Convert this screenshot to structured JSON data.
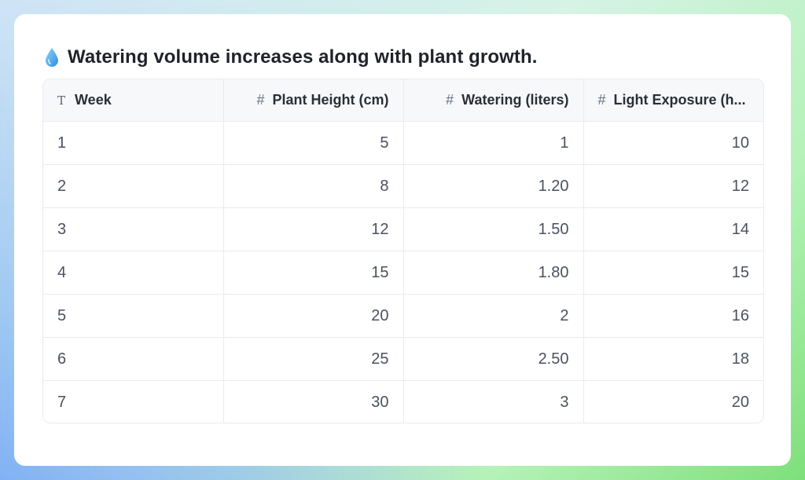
{
  "title": {
    "icon": "droplet-icon",
    "text": "Watering volume increases along with plant growth."
  },
  "table": {
    "columns": [
      {
        "label": "Week",
        "icon": "text-type-icon"
      },
      {
        "label": "Plant Height (cm)",
        "icon": "number-hash-icon"
      },
      {
        "label": "Watering (liters)",
        "icon": "number-hash-icon"
      },
      {
        "label": "Light Exposure (h...",
        "icon": "number-hash-icon"
      }
    ],
    "rows": [
      [
        "1",
        "5",
        "1",
        "10"
      ],
      [
        "2",
        "8",
        "1.20",
        "12"
      ],
      [
        "3",
        "12",
        "1.50",
        "14"
      ],
      [
        "4",
        "15",
        "1.80",
        "15"
      ],
      [
        "5",
        "20",
        "2",
        "16"
      ],
      [
        "6",
        "25",
        "2.50",
        "18"
      ],
      [
        "7",
        "30",
        "3",
        "20"
      ]
    ]
  },
  "colors": {
    "accent_drop": "#4fb3f0",
    "header_bg": "#f7f8fa",
    "border": "#e9ebef"
  }
}
